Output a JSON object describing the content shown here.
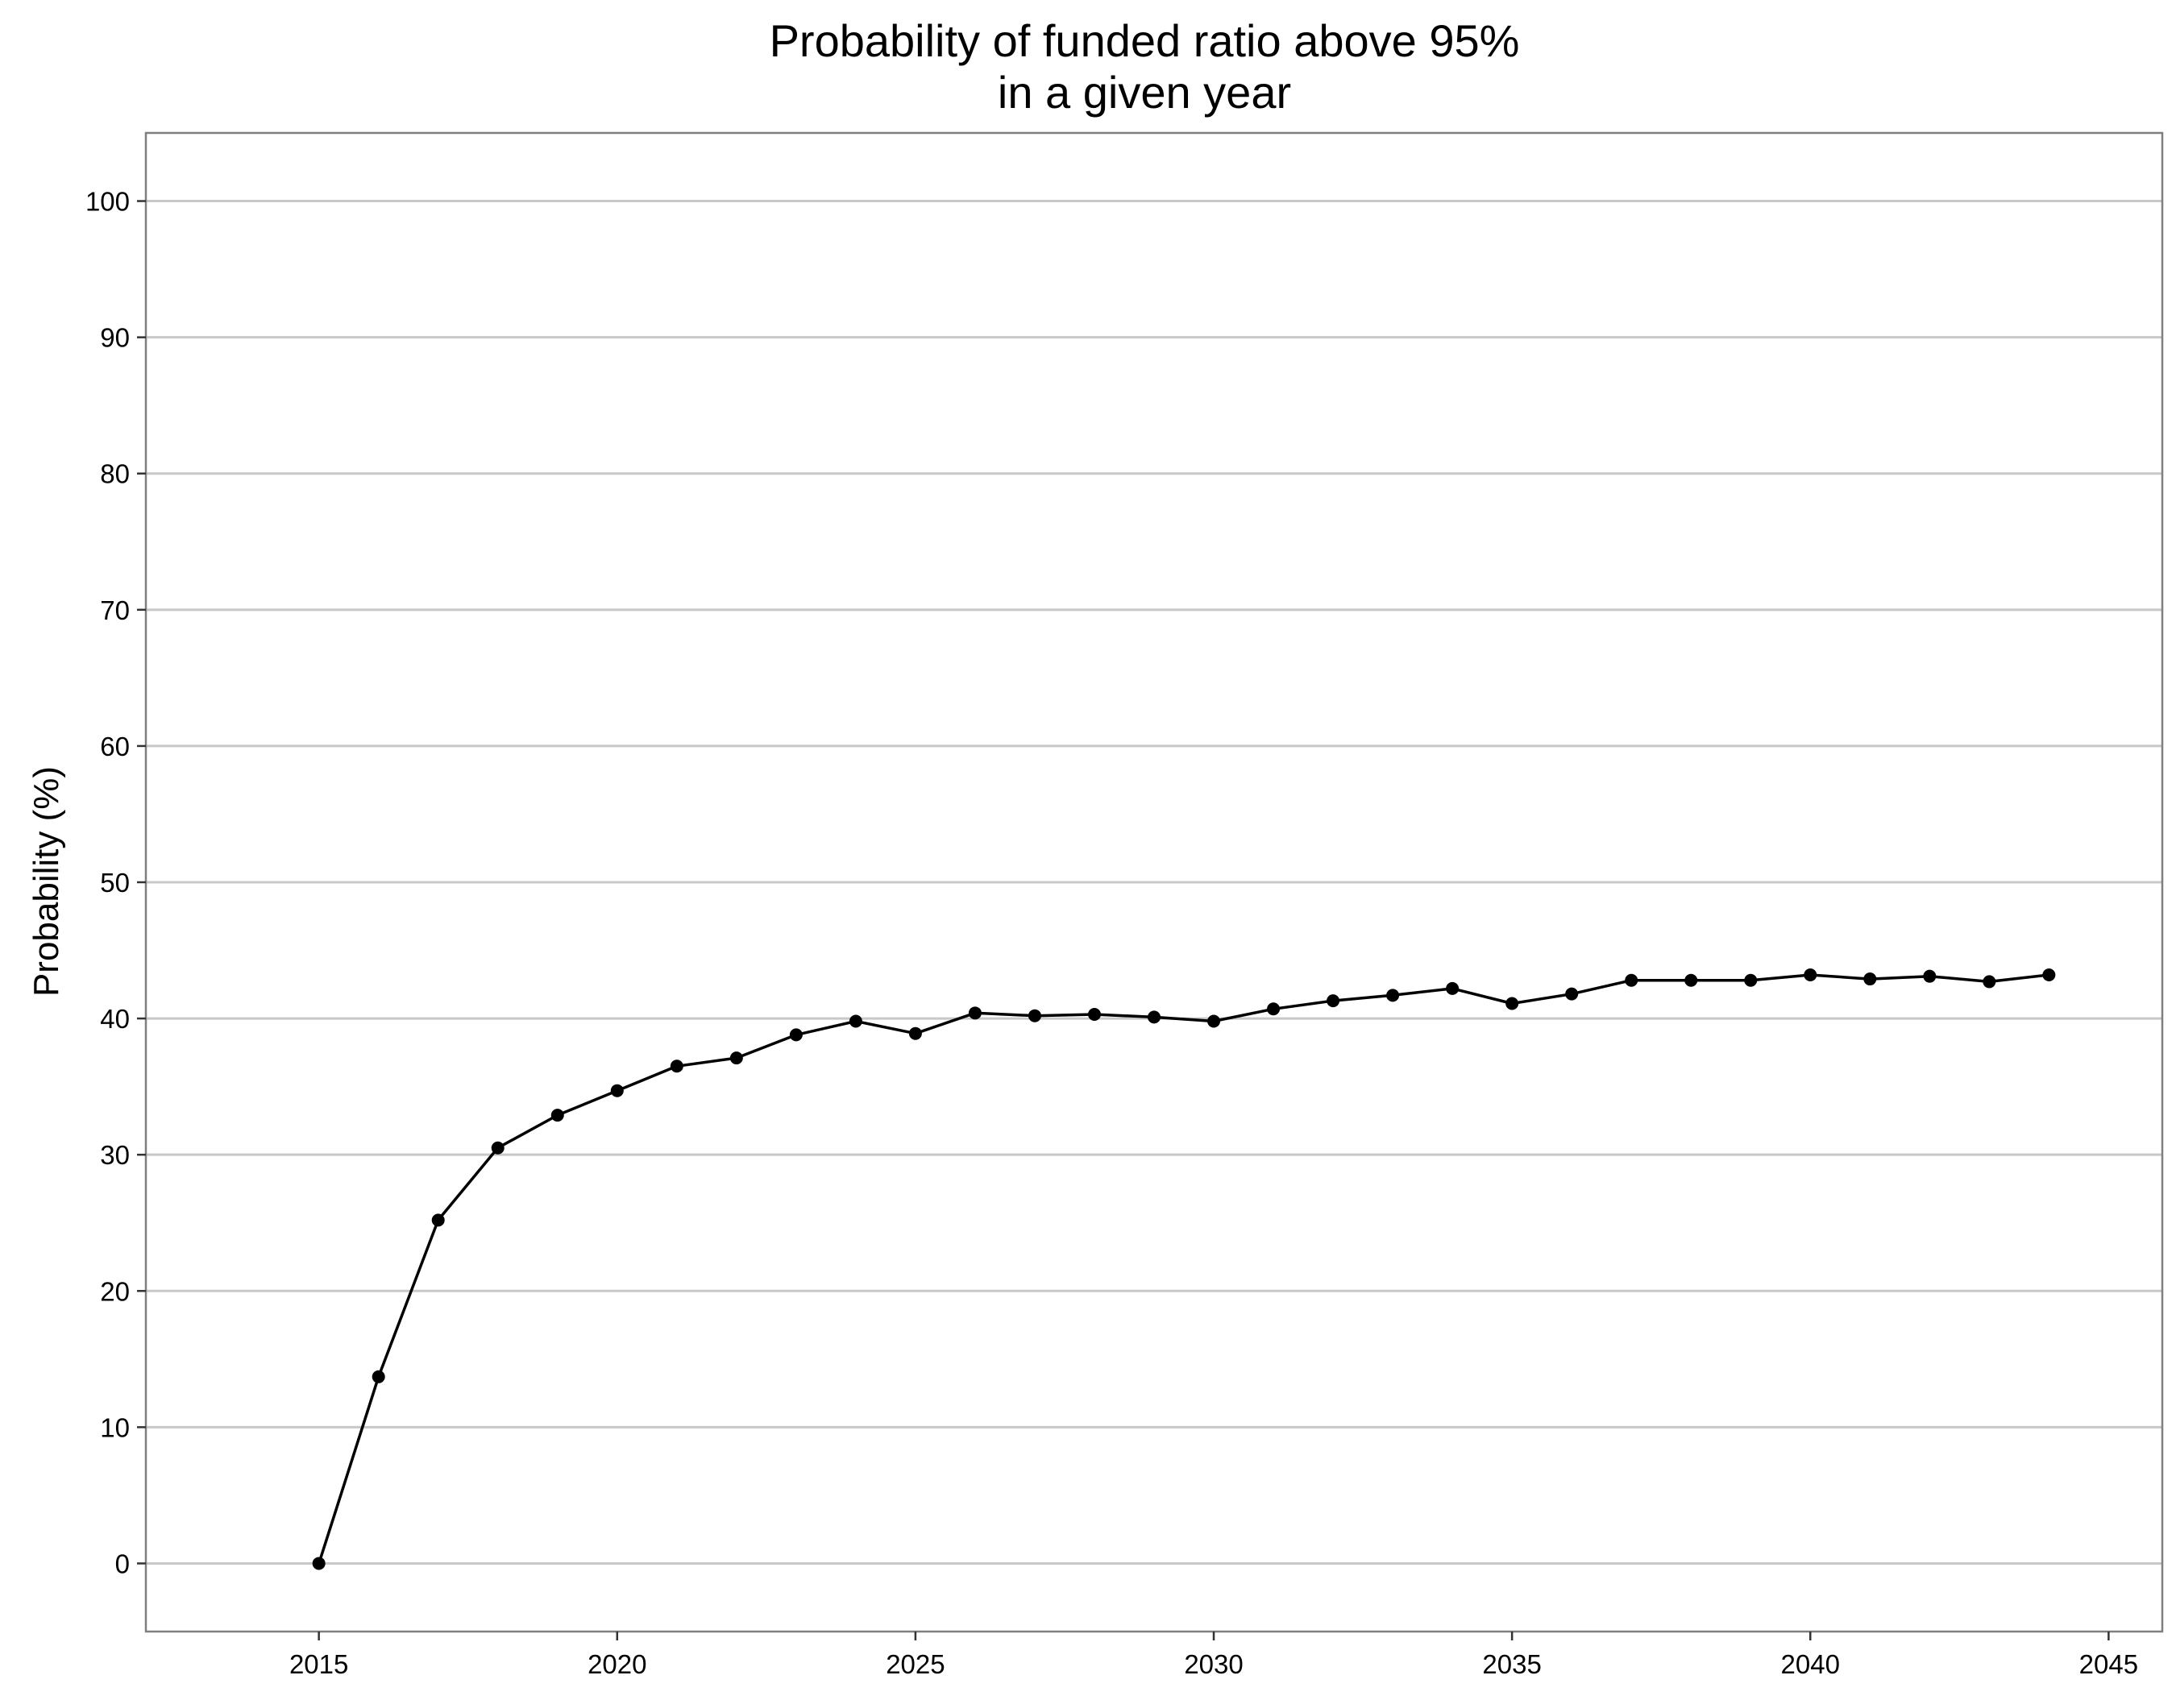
{
  "chart_data": {
    "type": "line",
    "title_lines": [
      "Probability of funded ratio above 95%",
      "in a given year"
    ],
    "xlabel": "",
    "ylabel": "Probability (%)",
    "xlim": [
      2012.1,
      2045.9
    ],
    "ylim": [
      -5,
      105
    ],
    "x_ticks": [
      2015,
      2020,
      2025,
      2030,
      2035,
      2040,
      2045
    ],
    "y_ticks": [
      0,
      10,
      20,
      30,
      40,
      50,
      60,
      70,
      80,
      90,
      100
    ],
    "grid": "horizontal major",
    "legend": "none",
    "series": [
      {
        "color": "#000000",
        "x": [
          2015,
          2016,
          2017,
          2018,
          2019,
          2020,
          2021,
          2022,
          2023,
          2024,
          2025,
          2026,
          2027,
          2028,
          2029,
          2030,
          2031,
          2032,
          2033,
          2034,
          2035,
          2036,
          2037,
          2038,
          2039,
          2040,
          2041,
          2042,
          2043,
          2044
        ],
        "y": [
          0.0,
          13.7,
          25.2,
          30.5,
          32.9,
          34.7,
          36.5,
          37.1,
          38.8,
          39.8,
          38.9,
          40.4,
          40.2,
          40.3,
          40.1,
          39.8,
          40.7,
          41.3,
          41.7,
          42.2,
          41.1,
          41.8,
          42.8,
          42.8,
          42.8,
          43.2,
          42.9,
          43.1,
          42.7,
          43.2
        ]
      }
    ]
  }
}
